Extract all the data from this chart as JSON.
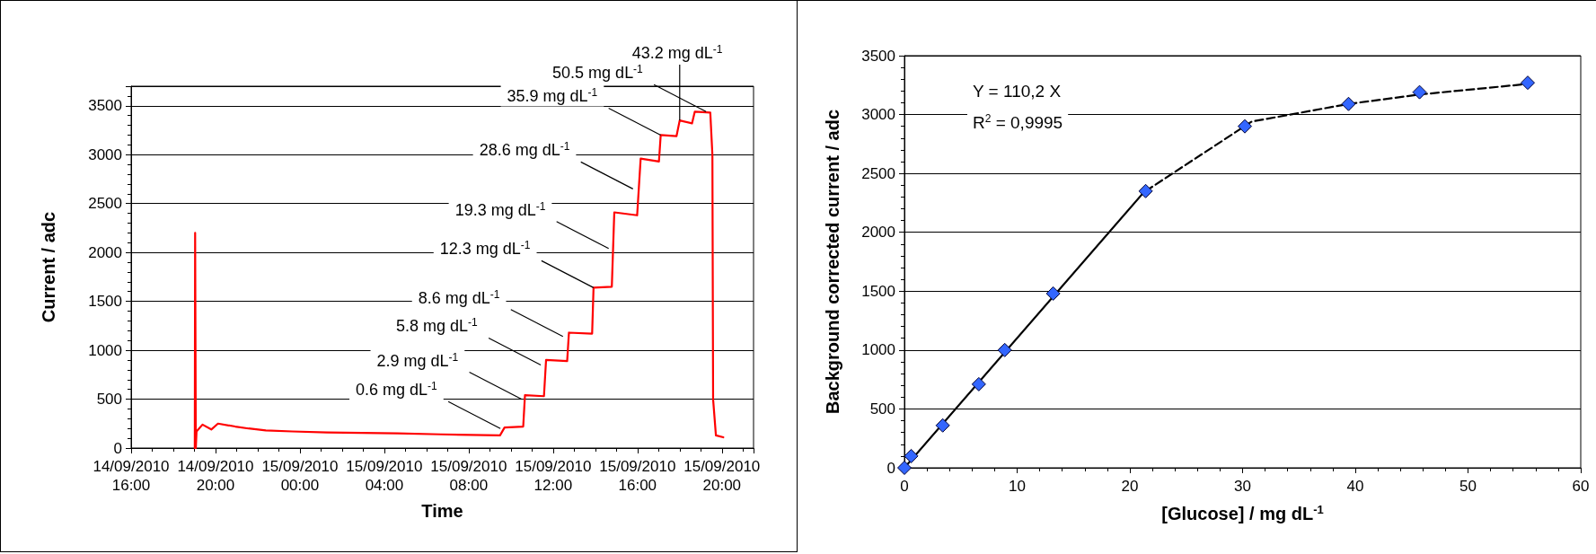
{
  "chart_data": [
    {
      "type": "line",
      "color": "#ff0000",
      "marker": "none",
      "line_style": "solid",
      "grid": "y",
      "xlabel": "Time",
      "ylabel": "Current / adc",
      "x": [
        "2010-09-14T19:01",
        "2010-09-14T19:02",
        "2010-09-14T19:04",
        "2010-09-14T19:06",
        "2010-09-14T19:23",
        "2010-09-14T19:48",
        "2010-09-14T20:07",
        "2010-09-14T20:56",
        "2010-09-14T21:34",
        "2010-09-14T22:23",
        "2010-09-14T23:38",
        "2010-09-15T01:17",
        "2010-09-15T04:37",
        "2010-09-15T06:41",
        "2010-09-15T09:29",
        "2010-09-15T09:42",
        "2010-09-15T10:35",
        "2010-09-15T10:40",
        "2010-09-15T11:34",
        "2010-09-15T11:40",
        "2010-09-15T12:40",
        "2010-09-15T12:45",
        "2010-09-15T13:51",
        "2010-09-15T13:55",
        "2010-09-15T14:47",
        "2010-09-15T14:54",
        "2010-09-15T15:59",
        "2010-09-15T16:09",
        "2010-09-15T17:01",
        "2010-09-15T17:06",
        "2010-09-15T17:51",
        "2010-09-15T18:00",
        "2010-09-15T18:35",
        "2010-09-15T18:43",
        "2010-09-15T19:27",
        "2010-09-15T19:33",
        "2010-09-15T19:35",
        "2010-09-15T19:43",
        "2010-09-15T20:04"
      ],
      "values": [
        0,
        2200,
        0,
        170,
        240,
        190,
        250,
        220,
        200,
        180,
        170,
        160,
        150,
        140,
        130,
        210,
        220,
        540,
        530,
        900,
        890,
        1180,
        1170,
        1640,
        1650,
        2410,
        2380,
        2960,
        2930,
        3200,
        3190,
        3350,
        3320,
        3440,
        3430,
        3000,
        500,
        130,
        110
      ],
      "xlim": [
        "2010-09-14T16:00",
        "2010-09-15T21:30"
      ],
      "xticks": [
        {
          "value": "2010-09-14T16:00",
          "label": "14/09/2010\n16:00"
        },
        {
          "value": "2010-09-14T20:00",
          "label": "14/09/2010\n20:00"
        },
        {
          "value": "2010-09-15T00:00",
          "label": "15/09/2010\n00:00"
        },
        {
          "value": "2010-09-15T04:00",
          "label": "15/09/2010\n04:00"
        },
        {
          "value": "2010-09-15T08:00",
          "label": "15/09/2010\n08:00"
        },
        {
          "value": "2010-09-15T12:00",
          "label": "15/09/2010\n12:00"
        },
        {
          "value": "2010-09-15T16:00",
          "label": "15/09/2010\n16:00"
        },
        {
          "value": "2010-09-15T20:00",
          "label": "15/09/2010\n20:00"
        }
      ],
      "ylim": [
        0,
        3700
      ],
      "yticks": [
        0,
        500,
        1000,
        1500,
        2000,
        2500,
        3000,
        3500
      ],
      "annotations": [
        {
          "text": "0.6 mg dL$^{-1}$",
          "x": "2010-09-15T09:30",
          "y": 200
        },
        {
          "text": "2.9 mg dL$^{-1}$",
          "x": "2010-09-15T10:30",
          "y": 500
        },
        {
          "text": "5.8 mg dL$^{-1}$",
          "x": "2010-09-15T11:25",
          "y": 850
        },
        {
          "text": "8.6 mg dL$^{-1}$",
          "x": "2010-09-15T12:28",
          "y": 1140
        },
        {
          "text": "12.3 mg dL$^{-1}$",
          "x": "2010-09-15T13:55",
          "y": 1640
        },
        {
          "text": "19.3 mg dL$^{-1}$",
          "x": "2010-09-15T14:38",
          "y": 2040
        },
        {
          "text": "28.6 mg dL$^{-1}$",
          "x": "2010-09-15T15:47",
          "y": 2650
        },
        {
          "text": "35.9 mg dL$^{-1}$",
          "x": "2010-09-15T17:06",
          "y": 3200
        },
        {
          "text": "43.2 mg dL$^{-1}$",
          "x": "2010-09-15T18:00",
          "y": 3350
        },
        {
          "text": "50.5 mg dL$^{-1}$",
          "x": "2010-09-15T19:15",
          "y": 3440
        }
      ]
    },
    {
      "type": "scatter",
      "grid": "y",
      "xlabel": "[Glucose] / mg dL$^{-1}$",
      "ylabel": "Background corrected current / adc",
      "series": [
        {
          "type": "scatter",
          "color": "#3366ff",
          "marker": "diamond",
          "x": [
            0,
            0.6,
            3.4,
            6.6,
            8.9,
            13.2,
            21.4,
            30.2,
            39.4,
            45.7,
            55.3
          ],
          "values": [
            0,
            100,
            360,
            710,
            1000,
            1480,
            2350,
            2900,
            3090,
            3190,
            3270
          ]
        },
        {
          "type": "line",
          "color": "#000000",
          "marker": "none",
          "line_style": "solid",
          "x": [
            0,
            21.4
          ],
          "values": [
            0,
            2358
          ]
        },
        {
          "type": "line",
          "color": "#000000",
          "marker": "none",
          "line_style": "dashed",
          "x": [
            21.4,
            30.8,
            39.4,
            45.7,
            55.3
          ],
          "values": [
            2350,
            2940,
            3090,
            3170,
            3260
          ]
        }
      ],
      "xlim": [
        0,
        60
      ],
      "xticks": [
        0,
        10,
        20,
        30,
        40,
        50,
        60
      ],
      "ylim": [
        0,
        3500
      ],
      "yticks": [
        0,
        500,
        1000,
        1500,
        2000,
        2500,
        3000,
        3500
      ],
      "annotations": [
        "Y = 110,2 X",
        "R$^{2}$ = 0,9995"
      ]
    }
  ]
}
